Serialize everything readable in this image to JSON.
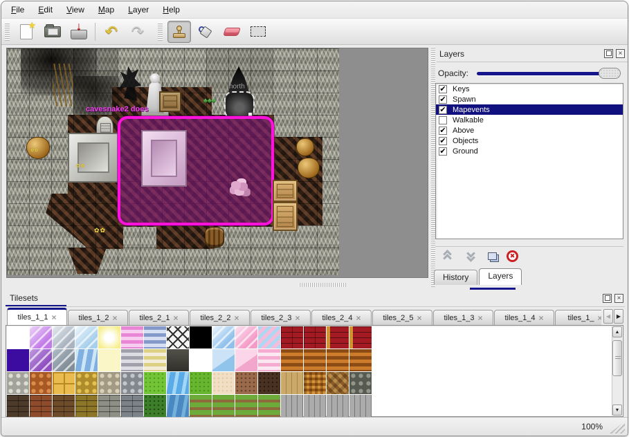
{
  "icons": {
    "star": "★",
    "down_arrow": "↓",
    "undo": "↶",
    "redo": "↷",
    "check": "✔",
    "close": "×",
    "tab_close": "×",
    "up": "▲",
    "down": "▼",
    "left": "◀",
    "right": "▶",
    "delete_x": "✖",
    "flowers": "✿✿",
    "plant": "♣♣♣"
  },
  "menu": {
    "items": [
      "File",
      "Edit",
      "View",
      "Map",
      "Layer",
      "Help"
    ]
  },
  "toolbar": {
    "tools": [
      "new",
      "open",
      "save",
      "undo",
      "redo",
      "stamp",
      "fill",
      "eraser",
      "select"
    ],
    "active_tool": "stamp"
  },
  "map": {
    "event_text": "cavesnake2 does",
    "exit_label": "north",
    "selection_color": "#ff12dc"
  },
  "layers_panel": {
    "title": "Layers",
    "opacity_label": "Opacity:",
    "layers": [
      {
        "name": "Keys",
        "checked": true,
        "selected": false
      },
      {
        "name": "Spawn",
        "checked": true,
        "selected": false
      },
      {
        "name": "Mapevents",
        "checked": true,
        "selected": true
      },
      {
        "name": "Walkable",
        "checked": false,
        "selected": false
      },
      {
        "name": "Above",
        "checked": true,
        "selected": false
      },
      {
        "name": "Objects",
        "checked": true,
        "selected": false
      },
      {
        "name": "Ground",
        "checked": true,
        "selected": false
      }
    ],
    "tabs": [
      {
        "label": "History",
        "active": false
      },
      {
        "label": "Layers",
        "active": true
      }
    ],
    "accent_color": "#16168c",
    "selection_row_color": "#10107e"
  },
  "tilesets_panel": {
    "title": "Tilesets",
    "tabs": [
      {
        "label": "tiles_1_1",
        "active": true
      },
      {
        "label": "tiles_1_2",
        "active": false
      },
      {
        "label": "tiles_2_1",
        "active": false
      },
      {
        "label": "tiles_2_2",
        "active": false
      },
      {
        "label": "tiles_2_3",
        "active": false
      },
      {
        "label": "tiles_2_4",
        "active": false
      },
      {
        "label": "tiles_2_5",
        "active": false
      },
      {
        "label": "tiles_1_3",
        "active": false
      },
      {
        "label": "tiles_1_4",
        "active": false
      },
      {
        "label": "tiles_1_",
        "active": false
      }
    ],
    "palette_rows": [
      [
        "w:#ffffff:#ffffff",
        "cr:#c27ae8:#ecd4f8",
        "cr:#aab4c0:#e4eaf0",
        "cr:#a8d0ec:#eef6fc",
        "gl:#f6ef8e:#ffffff",
        "hs:#ea86d6:#f8cef0",
        "hs:#8498ca:#d6e0f2",
        "la:#f4f4f4:#303030",
        "s:#000000:#000000",
        "cr:#90c0ec:#eef6fe",
        "cr:#f49cc8:#fce2f0",
        "dg:#aed8f2:#f6bcdc",
        "br:#a41a22:#6e1014",
        "br:#a41a22:#6e1014",
        "bg:#a41a22:#d09430",
        "bg:#a41a22:#d09430"
      ],
      [
        "s:#3c0ca0:#3c0ca0",
        "cr:#9050c0:#c09ae0",
        "cr:#828e98:#b2bec6",
        "wv:#80b0e2:#cce6f6",
        "s:#faf6c8:#fffdf0",
        "hs:#a0a0ac:#dcdce2",
        "hs:#dcd083:#f2ecd8",
        "sg:#30302a:#52524a",
        "w:#ffffff:#ffffff",
        "pn:#90c4ea:#cce2f6",
        "pn:#f2a6cc:#fad6e8",
        "hs:#f6acd0:#fce8f2",
        "hs:#8c4c16:#cc7c2a",
        "hs:#8c4c16:#cc7c2a",
        "hs:#8c4c16:#cc7c2a",
        "hs:#8c4c16:#cc7c2a"
      ],
      [
        "cb:#dcdcd4:#a2a29a",
        "cb:#d88e4c:#a85822",
        "gr:#eabc50:#bc8820",
        "cb:#e2c254:#b08c2c",
        "cb:#d8d0ba:#a29a82",
        "cb:#c2c6ca:#83888e",
        "sp:#74c438:#559e1e",
        "wv:#5aaae8:#a2d6f6",
        "sp:#68b630:#48951a",
        "sp:#f2dec4:#e2cba8",
        "sp:#9a6a4a:#66402a",
        "sp:#4a3222:#2c1a0e",
        "pv:#caa96a:#a68548",
        "bw:#d89238:#a05c14",
        "hb:#bc8c4a:#8c5c26",
        "cb:#93978a:#565a50"
      ],
      [
        "br:#4c3a2a:#281a10",
        "br:#8e4c2c:#562a14",
        "br:#6e4c2a:#442c16",
        "br:#8e7628:#564612",
        "br:#8e9086:#54564e",
        "br:#7c828a:#485058",
        "sp:#3c7e2a:#224e14",
        "wv:#4a88c2:#74b0dc",
        "gs:#6cab3a:#8c6a3c",
        "gs:#6cab3a:#8c6a3c",
        "gs:#6cab3a:#8c6a3c",
        "gs:#6cab3a:#8c6a3c",
        "pv:#ababab:#767676",
        "pv:#ababab:#767676",
        "pv:#ababab:#767676",
        "pv:#ababab:#767676"
      ]
    ]
  },
  "statusbar": {
    "zoom_level": "100%"
  }
}
